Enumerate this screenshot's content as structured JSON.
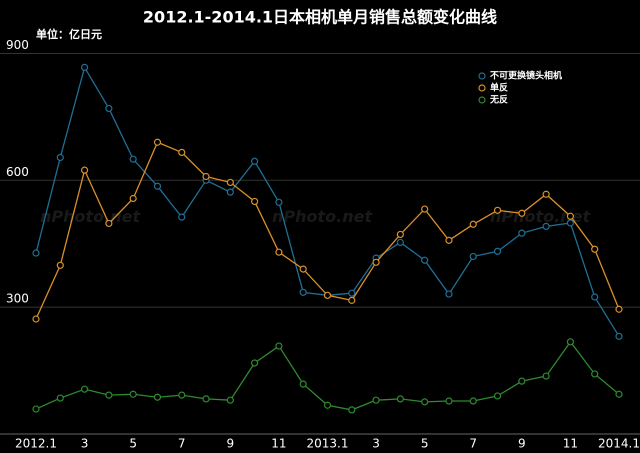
{
  "chart_data": {
    "type": "line",
    "title": "2012.1-2014.1日本相机单月销售总额变化曲线",
    "unit_label": "单位：亿日元",
    "watermark": "nPhoto.net",
    "categories": [
      "2012.1",
      null,
      "3",
      null,
      "5",
      null,
      "7",
      null,
      "9",
      null,
      "11",
      null,
      "2013.1",
      null,
      "3",
      null,
      "5",
      null,
      "7",
      null,
      "9",
      null,
      "11",
      null,
      "2014.1"
    ],
    "series": [
      {
        "name": "不可更换镜头相机",
        "color": "#1f6f95",
        "values": [
          428,
          654,
          867,
          770,
          650,
          586,
          513,
          600,
          572,
          645,
          548,
          335,
          328,
          333,
          416,
          453,
          411,
          331,
          420,
          432,
          475,
          491,
          499,
          324,
          231
        ]
      },
      {
        "name": "单反",
        "color": "#d9902a",
        "values": [
          272,
          399,
          624,
          498,
          557,
          690,
          666,
          609,
          595,
          550,
          430,
          390,
          328,
          316,
          406,
          472,
          532,
          458,
          496,
          529,
          522,
          567,
          515,
          437,
          295
        ]
      },
      {
        "name": "无反",
        "color": "#2e8b2e",
        "values": [
          59,
          85,
          106,
          92,
          94,
          87,
          92,
          83,
          80,
          168,
          208,
          118,
          68,
          57,
          80,
          83,
          76,
          78,
          78,
          90,
          125,
          137,
          218,
          142,
          94
        ]
      }
    ],
    "ylim": [
      0,
      920
    ],
    "yticks": [
      300,
      600,
      900
    ],
    "grid": true,
    "legend": "top-right"
  }
}
